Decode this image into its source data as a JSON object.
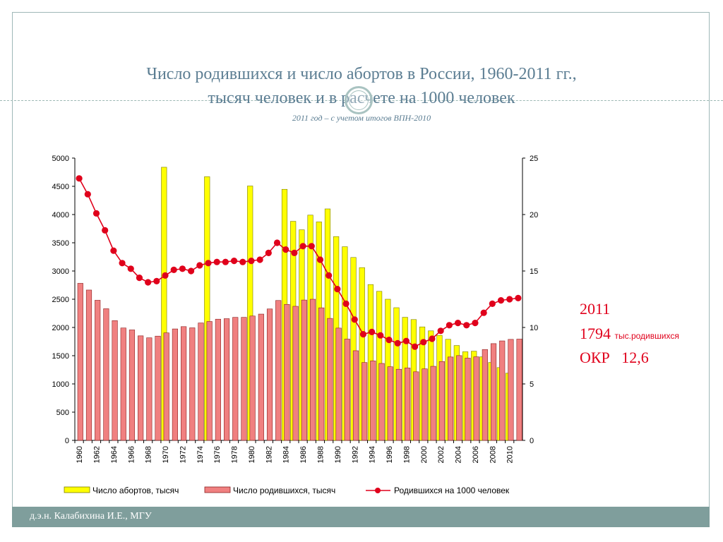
{
  "slide": {
    "title_line1": "Число родившихся и число абортов в России, 1960-2011 гг.,",
    "title_line2": "тысяч человек и в расчете на 1000 человек",
    "subtitle": "2011 год – с учетом итогов ВПН-2010",
    "footer": "д.э.н. Калабихина И.Е., МГУ",
    "annotation": {
      "year": "2011",
      "births_value": "1794",
      "births_unit": "тыс.родившихся",
      "tfr_label": "ОКР",
      "tfr_value": "12,6"
    },
    "colors": {
      "title": "#5b7d92",
      "annotation": "#e0001b",
      "footer_bg": "#7f9e9c"
    }
  },
  "chart_data": {
    "type": "bar",
    "x": [
      1960,
      1961,
      1962,
      1963,
      1964,
      1965,
      1966,
      1967,
      1968,
      1969,
      1970,
      1971,
      1972,
      1973,
      1974,
      1975,
      1976,
      1977,
      1978,
      1979,
      1980,
      1981,
      1982,
      1983,
      1984,
      1985,
      1986,
      1987,
      1988,
      1989,
      1990,
      1991,
      1992,
      1993,
      1994,
      1995,
      1996,
      1997,
      1998,
      1999,
      2000,
      2001,
      2002,
      2003,
      2004,
      2005,
      2006,
      2007,
      2008,
      2009,
      2010,
      2011
    ],
    "x_tick_labels": [
      "1960",
      "1962",
      "1964",
      "1966",
      "1968",
      "1970",
      "1972",
      "1974",
      "1976",
      "1978",
      "1980",
      "1982",
      "1984",
      "1986",
      "1988",
      "1990",
      "1992",
      "1994",
      "1996",
      "1998",
      "2000",
      "2002",
      "2004",
      "2006",
      "2008",
      "2010"
    ],
    "series": [
      {
        "name": "Число абортов, тысяч",
        "type": "bar",
        "axis": "left",
        "color": "#ffff00",
        "values": [
          null,
          null,
          null,
          null,
          null,
          null,
          null,
          null,
          null,
          null,
          4838,
          null,
          null,
          null,
          null,
          4670,
          null,
          null,
          null,
          null,
          4506,
          null,
          null,
          null,
          4447,
          3880,
          3730,
          3990,
          3870,
          4100,
          3610,
          3430,
          3240,
          3060,
          2760,
          2640,
          2500,
          2350,
          2180,
          2140,
          2010,
          1940,
          1860,
          1790,
          1680,
          1570,
          1580,
          1480,
          1380,
          1290,
          1190,
          null
        ]
      },
      {
        "name": "Число родившихся, тысяч",
        "type": "bar",
        "axis": "left",
        "color": "#f08080",
        "values": [
          2782,
          2663,
          2482,
          2332,
          2121,
          1991,
          1957,
          1852,
          1817,
          1847,
          1904,
          1974,
          2015,
          1994,
          2080,
          2106,
          2147,
          2156,
          2179,
          2179,
          2203,
          2237,
          2328,
          2478,
          2409,
          2375,
          2486,
          2500,
          2348,
          2161,
          1989,
          1794,
          1588,
          1379,
          1408,
          1363,
          1304,
          1260,
          1283,
          1215,
          1267,
          1312,
          1397,
          1477,
          1502,
          1457,
          1480,
          1610,
          1714,
          1762,
          1789,
          1794
        ]
      },
      {
        "name": "Родившихся на 1000 человек",
        "type": "line",
        "axis": "right",
        "color": "#e0001b",
        "values": [
          23.2,
          21.8,
          20.1,
          18.6,
          16.8,
          15.7,
          15.2,
          14.4,
          14.0,
          14.1,
          14.6,
          15.1,
          15.2,
          15.0,
          15.5,
          15.7,
          15.8,
          15.8,
          15.9,
          15.8,
          15.9,
          16.0,
          16.6,
          17.5,
          16.9,
          16.6,
          17.2,
          17.2,
          16.0,
          14.6,
          13.4,
          12.1,
          10.7,
          9.4,
          9.6,
          9.3,
          8.9,
          8.6,
          8.8,
          8.3,
          8.7,
          9.0,
          9.7,
          10.2,
          10.4,
          10.2,
          10.4,
          11.3,
          12.1,
          12.4,
          12.5,
          12.6
        ]
      }
    ],
    "ylim_left": [
      0,
      5000
    ],
    "yticks_left": [
      0,
      500,
      1000,
      1500,
      2000,
      2500,
      3000,
      3500,
      4000,
      4500,
      5000
    ],
    "ylim_right": [
      0,
      25
    ],
    "yticks_right": [
      0,
      5,
      10,
      15,
      20,
      25
    ],
    "grid": false,
    "legend_position": "bottom"
  }
}
